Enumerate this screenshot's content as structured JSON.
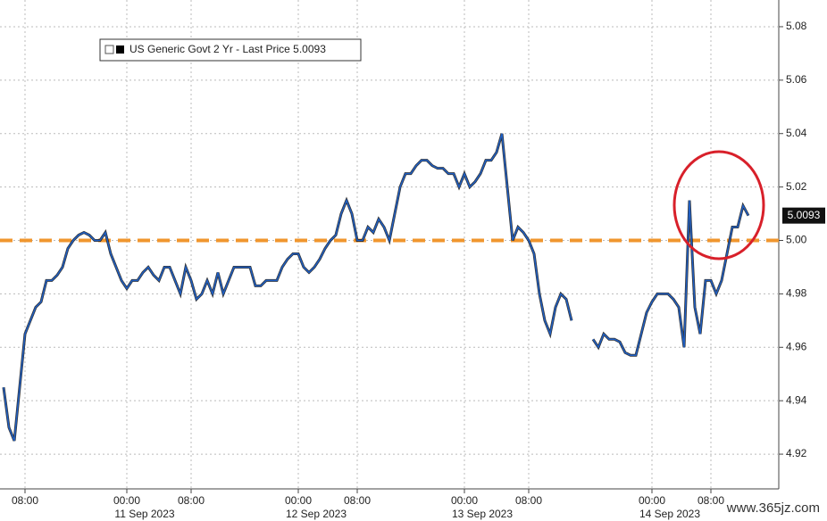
{
  "chart_data": {
    "type": "line",
    "categories": [
      null,
      null,
      null,
      null,
      "08:00",
      null,
      null,
      null,
      null,
      null,
      null,
      null,
      null,
      null,
      null,
      null,
      null,
      null,
      null,
      null,
      null,
      null,
      null,
      "00:00",
      null,
      null,
      null,
      null,
      null,
      null,
      null,
      null,
      null,
      null,
      null,
      "08:00",
      null,
      null,
      null,
      null,
      null,
      null,
      null,
      null,
      null,
      null,
      null,
      null,
      null,
      null,
      null,
      null,
      null,
      null,
      null,
      "00:00",
      null,
      null,
      null,
      null,
      null,
      null,
      null,
      null,
      null,
      null,
      "08:00",
      null,
      null,
      null,
      null,
      null,
      null,
      null,
      null,
      null,
      null,
      null,
      null,
      null,
      null,
      null,
      null,
      null,
      null,
      null,
      "00:00",
      null,
      null,
      null,
      null,
      null,
      null,
      null,
      null,
      null,
      null,
      null,
      "08:00",
      null,
      null,
      null,
      null,
      null,
      null,
      null,
      null,
      null,
      null,
      null,
      null,
      null,
      null,
      null,
      null,
      null,
      null,
      null,
      null,
      null,
      null,
      "00:00",
      null,
      null,
      null,
      null,
      null,
      null,
      null,
      null,
      null,
      null,
      "08:00",
      null,
      null,
      null,
      null,
      null,
      null,
      null
    ],
    "dates": [
      null,
      null,
      null,
      null,
      null,
      null,
      null,
      null,
      null,
      null,
      null,
      null,
      null,
      null,
      null,
      null,
      null,
      null,
      null,
      null,
      null,
      null,
      null,
      "11 Sep 2023",
      null,
      null,
      null,
      null,
      null,
      null,
      null,
      null,
      null,
      null,
      null,
      null,
      null,
      null,
      null,
      null,
      null,
      null,
      null,
      null,
      null,
      null,
      null,
      null,
      null,
      null,
      null,
      null,
      null,
      null,
      null,
      "12 Sep 2023",
      null,
      null,
      null,
      null,
      null,
      null,
      null,
      null,
      null,
      null,
      null,
      null,
      null,
      null,
      null,
      null,
      null,
      null,
      null,
      null,
      null,
      null,
      null,
      null,
      null,
      null,
      null,
      null,
      null,
      null,
      "13 Sep 2023",
      null,
      null,
      null,
      null,
      null,
      null,
      null,
      null,
      null,
      null,
      null,
      null,
      null,
      null,
      null,
      null,
      null,
      null,
      null,
      null,
      null,
      null,
      null,
      null,
      null,
      null,
      null,
      null,
      null,
      null,
      null,
      null,
      null,
      null,
      "14 Sep 2023",
      null,
      null,
      null,
      null,
      null,
      null,
      null,
      null,
      null,
      null,
      null,
      null,
      null,
      null,
      null,
      null,
      null,
      null
    ],
    "series": [
      {
        "name": "US Generic Govt 2 Yr - Last Price 5.0093",
        "color": "#1f5fc4",
        "values": [
          4.945,
          4.93,
          4.925,
          4.945,
          4.965,
          4.97,
          4.975,
          4.977,
          4.985,
          4.985,
          4.987,
          4.99,
          4.997,
          5.0,
          5.002,
          5.003,
          5.002,
          5.0,
          5.0,
          5.003,
          4.995,
          4.99,
          4.985,
          4.982,
          4.985,
          4.985,
          4.988,
          4.99,
          4.987,
          4.985,
          4.99,
          4.99,
          4.985,
          4.98,
          4.99,
          4.985,
          4.978,
          4.98,
          4.985,
          4.98,
          4.988,
          4.98,
          4.985,
          4.99,
          4.99,
          4.99,
          4.99,
          4.983,
          4.983,
          4.985,
          4.985,
          4.985,
          4.99,
          4.993,
          4.995,
          4.995,
          4.99,
          4.988,
          4.99,
          4.993,
          4.997,
          5.0,
          5.002,
          5.01,
          5.015,
          5.01,
          5.0,
          5.0,
          5.005,
          5.003,
          5.008,
          5.005,
          5.0,
          5.01,
          5.02,
          5.025,
          5.025,
          5.028,
          5.03,
          5.03,
          5.028,
          5.027,
          5.027,
          5.025,
          5.025,
          5.02,
          5.025,
          5.02,
          5.022,
          5.025,
          5.03,
          5.03,
          5.033,
          5.04,
          5.02,
          5.0,
          5.005,
          5.003,
          5.0,
          4.995,
          4.98,
          4.97,
          4.965,
          4.975,
          4.98,
          4.978,
          4.97,
          null,
          null,
          null,
          4.963,
          4.96,
          4.965,
          4.963,
          4.963,
          4.962,
          4.958,
          4.957,
          4.957,
          4.965,
          4.973,
          4.977,
          4.98,
          4.98,
          4.98,
          4.978,
          4.975,
          4.96,
          5.015,
          4.975,
          4.965,
          4.985,
          4.985,
          4.98,
          4.985,
          4.995,
          5.005,
          5.005,
          5.013,
          5.0093
        ]
      }
    ],
    "last_price": {
      "value": 5.0093,
      "label": "5.0093"
    },
    "hline": {
      "value": 5.0,
      "color": "#f0962e"
    },
    "ylim": [
      4.907,
      5.09
    ],
    "yticks": [
      4.92,
      4.94,
      4.96,
      4.98,
      {
        "value": 5.0,
        "label": "5.00"
      },
      5.02,
      5.04,
      5.06,
      5.08
    ],
    "grid": true,
    "watermark": "www.365jz.com"
  }
}
